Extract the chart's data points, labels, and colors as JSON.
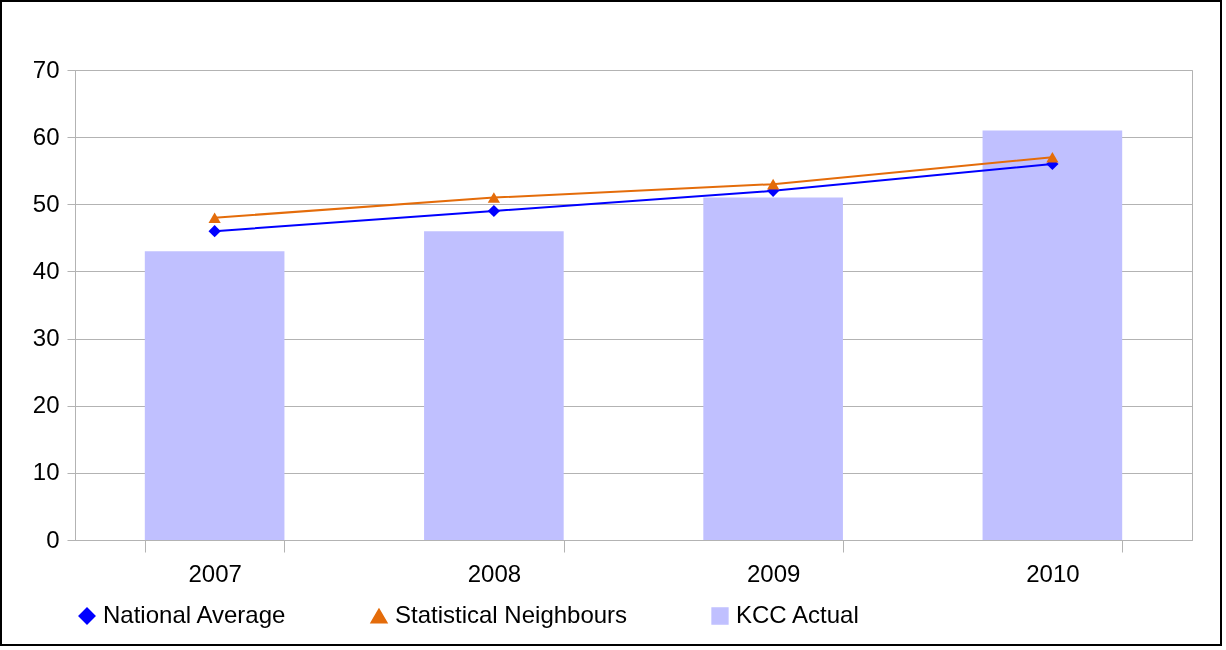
{
  "chart_data": {
    "type": "bar",
    "categories": [
      "2007",
      "2008",
      "2009",
      "2010"
    ],
    "series": [
      {
        "name": "National Average",
        "type": "line",
        "color": "#0000ff",
        "marker": "diamond",
        "values": [
          46,
          49,
          52,
          56
        ]
      },
      {
        "name": "Statistical Neighbours",
        "type": "line",
        "color": "#e46c0a",
        "marker": "triangle",
        "values": [
          48,
          51,
          53,
          57
        ]
      },
      {
        "name": "KCC Actual",
        "type": "bar",
        "color": "#c0c0ff",
        "values": [
          43,
          46,
          51,
          61
        ]
      }
    ],
    "ylim": [
      0,
      70
    ],
    "yticks": [
      0,
      10,
      20,
      30,
      40,
      50,
      60,
      70
    ],
    "grid": "y",
    "legend": "bottom"
  }
}
